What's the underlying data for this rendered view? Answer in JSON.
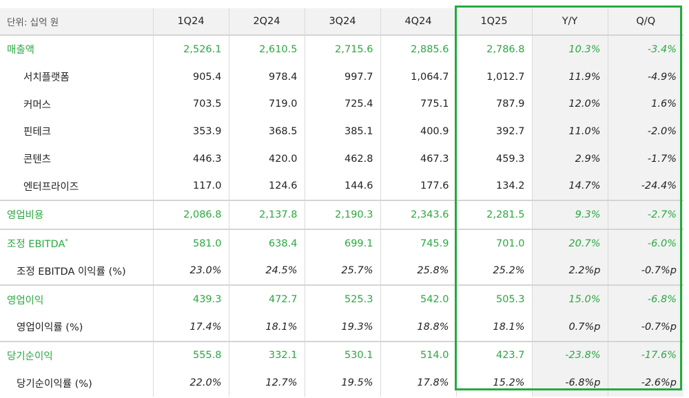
{
  "unit_label": "단위: 십억 원",
  "columns": [
    "1Q24",
    "2Q24",
    "3Q24",
    "4Q24",
    "1Q25",
    "Y/Y",
    "Q/Q"
  ],
  "rows": [
    {
      "label": "매출액",
      "type": "main",
      "values": [
        "2,526.1",
        "2,610.5",
        "2,715.6",
        "2,885.6",
        "2,786.8",
        "10.3%",
        "-3.4%"
      ]
    },
    {
      "label": "서치플랫폼",
      "type": "sub",
      "values": [
        "905.4",
        "978.4",
        "997.7",
        "1,064.7",
        "1,012.7",
        "11.9%",
        "-4.9%"
      ]
    },
    {
      "label": "커머스",
      "type": "sub",
      "values": [
        "703.5",
        "719.0",
        "725.4",
        "775.1",
        "787.9",
        "12.0%",
        "1.6%"
      ]
    },
    {
      "label": "핀테크",
      "type": "sub",
      "values": [
        "353.9",
        "368.5",
        "385.1",
        "400.9",
        "392.7",
        "11.0%",
        "-2.0%"
      ]
    },
    {
      "label": "콘텐츠",
      "type": "sub",
      "values": [
        "446.3",
        "420.0",
        "462.8",
        "467.3",
        "459.3",
        "2.9%",
        "-1.7%"
      ]
    },
    {
      "label": "엔터프라이즈",
      "type": "sub",
      "values": [
        "117.0",
        "124.6",
        "144.6",
        "177.6",
        "134.2",
        "14.7%",
        "-24.4%"
      ]
    },
    {
      "label": "영업비용",
      "type": "main",
      "values": [
        "2,086.8",
        "2,137.8",
        "2,190.3",
        "2,343.6",
        "2,281.5",
        "9.3%",
        "-2.7%"
      ]
    },
    {
      "label": "조정 EBITDA",
      "sup": "*",
      "type": "main",
      "values": [
        "581.0",
        "638.4",
        "699.1",
        "745.9",
        "701.0",
        "20.7%",
        "-6.0%"
      ]
    },
    {
      "label": "조정 EBITDA 이익률 (%)",
      "type": "sub2",
      "italic": true,
      "values": [
        "23.0%",
        "24.5%",
        "25.7%",
        "25.8%",
        "25.2%",
        "2.2%p",
        "-0.7%p"
      ]
    },
    {
      "label": "영업이익",
      "type": "main",
      "values": [
        "439.3",
        "472.7",
        "525.3",
        "542.0",
        "505.3",
        "15.0%",
        "-6.8%"
      ]
    },
    {
      "label": "영업이익률 (%)",
      "type": "sub2",
      "italic": true,
      "values": [
        "17.4%",
        "18.1%",
        "19.3%",
        "18.8%",
        "18.1%",
        "0.7%p",
        "-0.7%p"
      ]
    },
    {
      "label": "당기순이익",
      "type": "main",
      "values": [
        "555.8",
        "332.1",
        "530.1",
        "514.0",
        "423.7",
        "-23.8%",
        "-17.6%"
      ]
    },
    {
      "label": "당기순이익률 (%)",
      "type": "sub2",
      "italic": true,
      "values": [
        "22.0%",
        "12.7%",
        "19.5%",
        "17.8%",
        "15.2%",
        "-6.8%p",
        "-2.6%p"
      ]
    }
  ],
  "colors": {
    "accent": "#2aa840",
    "highlight_border": "#22aa3c",
    "shade": "#f2f2f2"
  }
}
